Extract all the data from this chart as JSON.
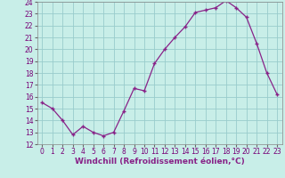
{
  "x": [
    0,
    1,
    2,
    3,
    4,
    5,
    6,
    7,
    8,
    9,
    10,
    11,
    12,
    13,
    14,
    15,
    16,
    17,
    18,
    19,
    20,
    21,
    22,
    23
  ],
  "y": [
    15.5,
    15.0,
    14.0,
    12.8,
    13.5,
    13.0,
    12.7,
    13.0,
    14.8,
    16.7,
    16.5,
    18.8,
    20.0,
    21.0,
    21.9,
    23.1,
    23.3,
    23.5,
    24.1,
    23.5,
    22.7,
    20.5,
    18.0,
    16.2
  ],
  "line_color": "#882288",
  "marker": "+",
  "bg_color": "#c8eee8",
  "grid_color": "#99cccc",
  "xlabel": "Windchill (Refroidissement éolien,°C)",
  "ylim": [
    12,
    24
  ],
  "xlim": [
    -0.5,
    23.5
  ],
  "yticks": [
    12,
    13,
    14,
    15,
    16,
    17,
    18,
    19,
    20,
    21,
    22,
    23,
    24
  ],
  "xticks": [
    0,
    1,
    2,
    3,
    4,
    5,
    6,
    7,
    8,
    9,
    10,
    11,
    12,
    13,
    14,
    15,
    16,
    17,
    18,
    19,
    20,
    21,
    22,
    23
  ],
  "tick_fontsize": 5.5,
  "label_fontsize": 6.5
}
